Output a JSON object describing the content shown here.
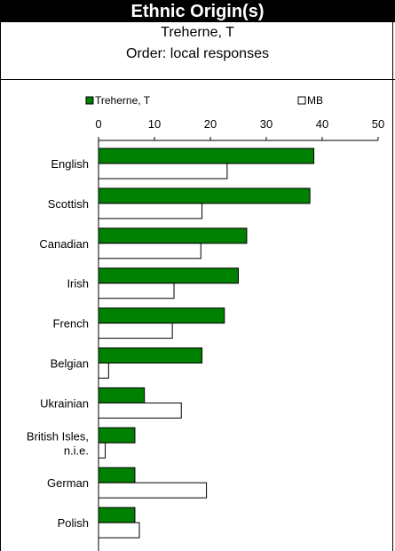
{
  "header": {
    "title": "Ethnic Origin(s)",
    "subtitle": "Treherne, T",
    "order_note": "Order: local responses"
  },
  "chart_data": {
    "type": "bar",
    "orientation": "horizontal",
    "title": "Ethnic Origin(s)",
    "xlim": [
      0,
      50
    ],
    "xticks": [
      0,
      10,
      20,
      30,
      40,
      50
    ],
    "grid": false,
    "legend_placement": "top",
    "categories": [
      "English",
      "Scottish",
      "Canadian",
      "Irish",
      "French",
      "Belgian",
      "Ukrainian",
      "British Isles, n.i.e.",
      "German",
      "Polish"
    ],
    "category_lines": [
      [
        "English"
      ],
      [
        "Scottish"
      ],
      [
        "Canadian"
      ],
      [
        "Irish"
      ],
      [
        "French"
      ],
      [
        "Belgian"
      ],
      [
        "Ukrainian"
      ],
      [
        "British Isles,",
        "n.i.e."
      ],
      [
        "German"
      ],
      [
        "Polish"
      ]
    ],
    "series": [
      {
        "name": "Treherne, T",
        "color": "#008000",
        "values": [
          38.5,
          37.8,
          26.5,
          25.0,
          22.5,
          18.5,
          8.2,
          6.5,
          6.5,
          6.5
        ]
      },
      {
        "name": "MB",
        "color": "#ffffff",
        "values": [
          23.0,
          18.5,
          18.3,
          13.5,
          13.2,
          1.8,
          14.8,
          1.2,
          19.3,
          7.3
        ]
      }
    ]
  }
}
